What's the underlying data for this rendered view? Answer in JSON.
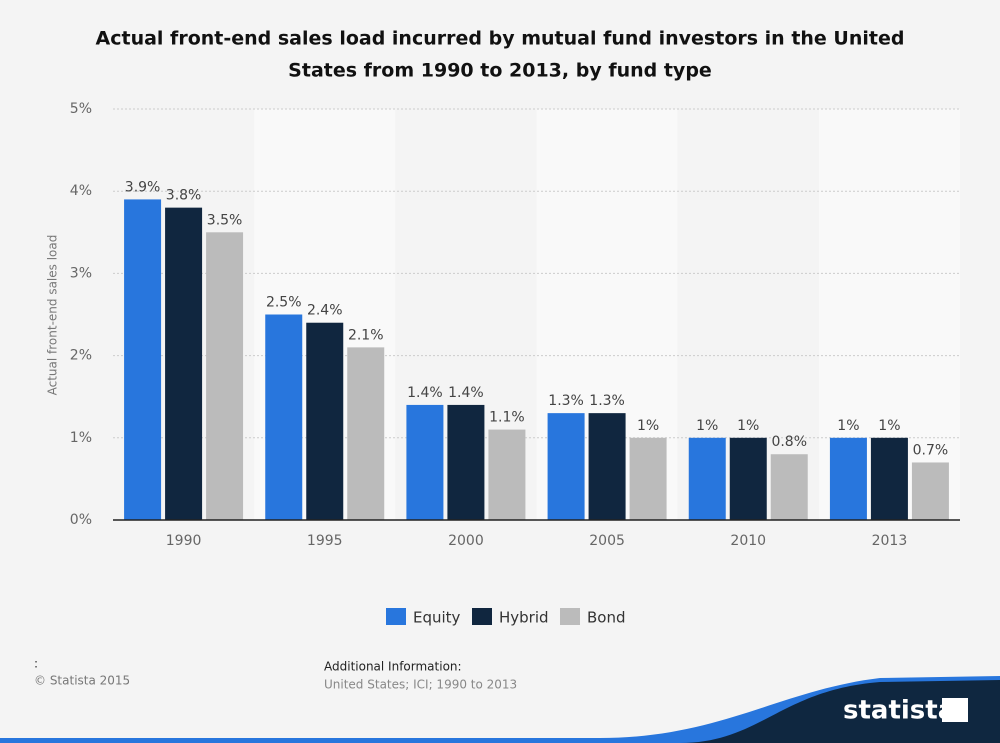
{
  "chart_data": {
    "type": "bar",
    "title_lines": [
      "Actual front-end sales load incurred by mutual fund investors in the United",
      "States from 1990 to 2013, by fund type"
    ],
    "ylabel": "Actual front-end sales load",
    "categories": [
      "1990",
      "1995",
      "2000",
      "2005",
      "2010",
      "2013"
    ],
    "series": [
      {
        "name": "Equity",
        "color": "#2876dd",
        "values": [
          3.9,
          2.5,
          1.4,
          1.3,
          1,
          1
        ],
        "value_labels": [
          "3.9%",
          "2.5%",
          "1.4%",
          "1.3%",
          "1%",
          "1%"
        ]
      },
      {
        "name": "Hybrid",
        "color": "#10263f",
        "values": [
          3.8,
          2.4,
          1.4,
          1.3,
          1,
          1
        ],
        "value_labels": [
          "3.8%",
          "2.4%",
          "1.4%",
          "1.3%",
          "1%",
          "1%"
        ]
      },
      {
        "name": "Bond",
        "color": "#bbbbbb",
        "values": [
          3.5,
          2.1,
          1.1,
          1,
          0.8,
          0.7
        ],
        "value_labels": [
          "3.5%",
          "2.1%",
          "1.1%",
          "1%",
          "0.8%",
          "0.7%"
        ]
      }
    ],
    "ylim": [
      0,
      5
    ],
    "yticks": [
      {
        "value": 0,
        "label": "0%"
      },
      {
        "value": 1,
        "label": "1%"
      },
      {
        "value": 2,
        "label": "2%"
      },
      {
        "value": 3,
        "label": "3%"
      },
      {
        "value": 4,
        "label": "4%"
      },
      {
        "value": 5,
        "label": "5%"
      }
    ],
    "grid": true,
    "legend": "bottom"
  },
  "footer": {
    "colon": ":",
    "copyright": "© Statista 2015",
    "info_title": "Additional Information:",
    "info": "United States; ICI; 1990 to 2013",
    "logo": "statista"
  }
}
